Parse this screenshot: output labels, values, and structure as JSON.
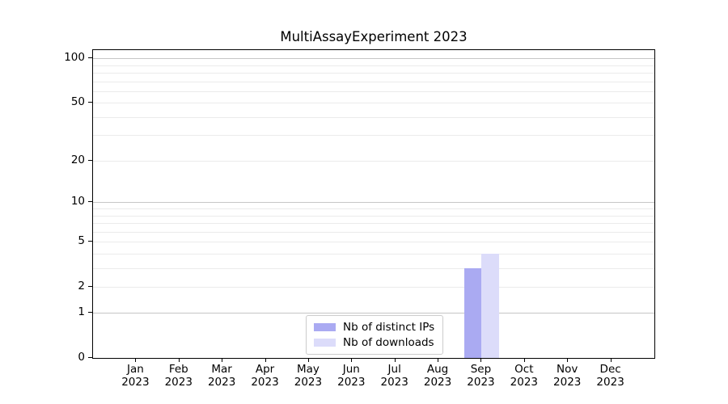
{
  "chart_data": {
    "type": "bar",
    "title": "MultiAssayExperiment 2023",
    "categories": [
      {
        "label": "Jan",
        "sub": "2023"
      },
      {
        "label": "Feb",
        "sub": "2023"
      },
      {
        "label": "Mar",
        "sub": "2023"
      },
      {
        "label": "Apr",
        "sub": "2023"
      },
      {
        "label": "May",
        "sub": "2023"
      },
      {
        "label": "Jun",
        "sub": "2023"
      },
      {
        "label": "Jul",
        "sub": "2023"
      },
      {
        "label": "Aug",
        "sub": "2023"
      },
      {
        "label": "Sep",
        "sub": "2023"
      },
      {
        "label": "Oct",
        "sub": "2023"
      },
      {
        "label": "Nov",
        "sub": "2023"
      },
      {
        "label": "Dec",
        "sub": "2023"
      }
    ],
    "series": [
      {
        "name": "Nb of distinct IPs",
        "color": "#aaaaf2",
        "values": [
          0,
          0,
          0,
          0,
          0,
          0,
          0,
          0,
          3,
          0,
          0,
          0
        ]
      },
      {
        "name": "Nb of downloads",
        "color": "#dcdcfa",
        "values": [
          0,
          0,
          0,
          0,
          0,
          0,
          0,
          0,
          4,
          0,
          0,
          0
        ]
      }
    ],
    "yscale": "log1p",
    "ylim": [
      0,
      114
    ],
    "yticks": [
      0,
      1,
      2,
      5,
      10,
      20,
      50,
      100
    ],
    "ytick_labels": [
      "0",
      "1",
      "2",
      "5",
      "10",
      "20",
      "50",
      "100"
    ],
    "major_gridlines": [
      1,
      10,
      100
    ],
    "minor_gridlines": [
      2,
      3,
      4,
      5,
      6,
      7,
      8,
      9,
      20,
      30,
      40,
      50,
      60,
      70,
      80,
      90
    ],
    "grid": true,
    "legend_position": "lower center",
    "spine_color": "#000000",
    "grid_minor_color": "#ebebeb",
    "grid_major_color": "#c6c6c6"
  }
}
